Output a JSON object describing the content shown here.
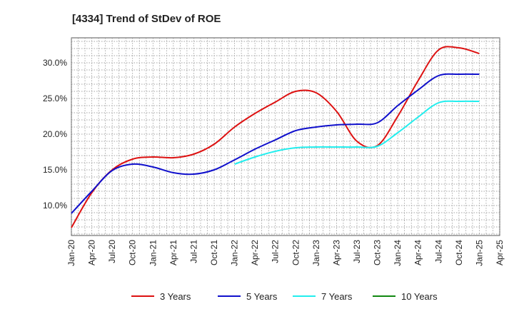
{
  "chart_data": {
    "type": "line",
    "title": "[4334]  Trend of StDev of ROE",
    "xlabel": "",
    "ylabel": "",
    "x_ticks": [
      "Jan-20",
      "Apr-20",
      "Jul-20",
      "Oct-20",
      "Jan-21",
      "Apr-21",
      "Jul-21",
      "Oct-21",
      "Jan-22",
      "Apr-22",
      "Jul-22",
      "Oct-22",
      "Jan-23",
      "Apr-23",
      "Jul-23",
      "Oct-23",
      "Jan-24",
      "Apr-24",
      "Jul-24",
      "Oct-24",
      "Jan-25",
      "Apr-25"
    ],
    "y_ticks": [
      "10.0%",
      "15.0%",
      "20.0%",
      "25.0%",
      "30.0%"
    ],
    "y_tick_values": [
      10,
      15,
      20,
      25,
      30
    ],
    "ylim": [
      5.8,
      33.5
    ],
    "grid": true,
    "legend_position": "bottom",
    "x": [
      "Jan-20",
      "Apr-20",
      "Jul-20",
      "Oct-20",
      "Jan-21",
      "Apr-21",
      "Jul-21",
      "Oct-21",
      "Jan-22",
      "Apr-22",
      "Jul-22",
      "Oct-22",
      "Jan-23",
      "Apr-23",
      "Jul-23",
      "Oct-23",
      "Jan-24",
      "Apr-24",
      "Jul-24",
      "Oct-24",
      "Jan-25"
    ],
    "series": [
      {
        "name": "3 Years",
        "color": "#dd1111",
        "values": [
          6.9,
          11.8,
          15.0,
          16.5,
          16.8,
          16.7,
          17.2,
          18.6,
          21.0,
          22.9,
          24.5,
          26.0,
          25.8,
          23.2,
          19.0,
          18.4,
          22.5,
          27.5,
          31.8,
          32.1,
          31.3
        ]
      },
      {
        "name": "5 Years",
        "color": "#1010cc",
        "values": [
          8.9,
          12.0,
          14.9,
          15.8,
          15.4,
          14.6,
          14.4,
          15.0,
          16.4,
          17.9,
          19.2,
          20.5,
          21.0,
          21.3,
          21.4,
          21.6,
          24.0,
          26.2,
          28.2,
          28.4,
          28.4
        ]
      },
      {
        "name": "7 Years",
        "color": "#22eeee",
        "values": [
          null,
          null,
          null,
          null,
          null,
          null,
          null,
          null,
          15.8,
          16.8,
          17.6,
          18.1,
          18.2,
          18.2,
          18.2,
          18.3,
          20.2,
          22.4,
          24.4,
          24.6,
          24.6
        ]
      },
      {
        "name": "10 Years",
        "color": "#118811",
        "values": [
          null,
          null,
          null,
          null,
          null,
          null,
          null,
          null,
          null,
          null,
          null,
          null,
          null,
          null,
          null,
          null,
          null,
          null,
          null,
          null,
          null
        ]
      }
    ]
  }
}
